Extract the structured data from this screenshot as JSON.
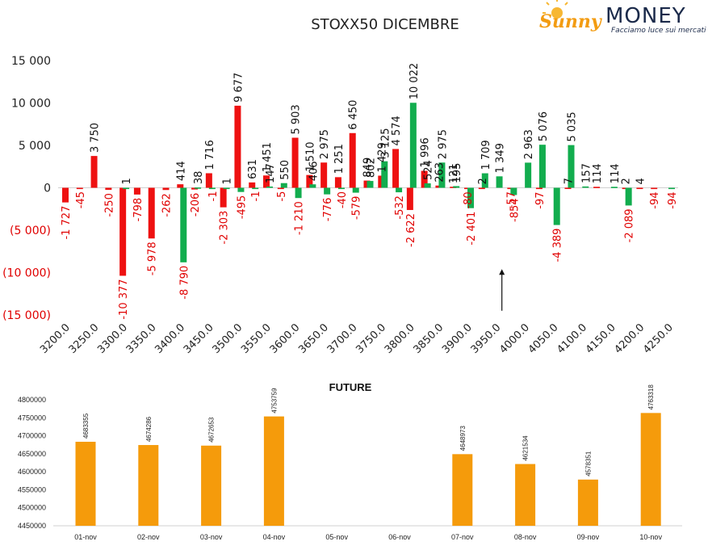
{
  "logo": {
    "brand_part1": "Sunny",
    "brand_part2": "MONEY",
    "tagline": "Facciamo luce sui mercati",
    "colors": {
      "sun": "#f39c12",
      "text": "#1b2a4a"
    }
  },
  "colors": {
    "red": "#ee1111",
    "green": "#12ad4e",
    "orange": "#f59b0b",
    "negative_tick": "#e00000",
    "positive_tick": "#222222"
  },
  "chart_data": [
    {
      "type": "bar",
      "title": "STOXX50 DICEMBRE",
      "ylim": [
        -15000,
        15000
      ],
      "y_ticks": [
        {
          "value": 15000,
          "label": "15 000"
        },
        {
          "value": 10000,
          "label": "10 000"
        },
        {
          "value": 5000,
          "label": "5 000"
        },
        {
          "value": 0,
          "label": "0"
        },
        {
          "value": -5000,
          "label": "(5 000)"
        },
        {
          "value": -10000,
          "label": "(10 000)"
        },
        {
          "value": -15000,
          "label": "(15 000)"
        }
      ],
      "categories": [
        "3200.0",
        "3250.0",
        "3300.0",
        "3350.0",
        "3400.0",
        "3450.0",
        "3500.0",
        "3550.0",
        "3600.0",
        "3650.0",
        "3700.0",
        "3750.0",
        "3800.0",
        "3850.0",
        "3900.0",
        "3950.0",
        "4000.0",
        "4050.0",
        "4100.0",
        "4150.0",
        "4200.0",
        "4250.0"
      ],
      "series": [
        {
          "color": "red",
          "points": [
            {
              "x": 3200,
              "value": -1727,
              "label": "-1 727"
            },
            {
              "x": 3225,
              "value": -45,
              "label": "-45"
            },
            {
              "x": 3250,
              "value": 3750,
              "label": "3 750"
            },
            {
              "x": 3275,
              "value": -250,
              "label": "-250"
            },
            {
              "x": 3300,
              "value": -10377,
              "label": "-10 377"
            },
            {
              "x": 3325,
              "value": -798,
              "label": "-798"
            },
            {
              "x": 3350,
              "value": -5978,
              "label": "-5 978"
            },
            {
              "x": 3375,
              "value": -262,
              "label": "-262"
            },
            {
              "x": 3400,
              "value": 414,
              "label": "414"
            },
            {
              "x": 3425,
              "value": -206,
              "label": "-206"
            },
            {
              "x": 3450,
              "value": 1716,
              "label": "1 716"
            },
            {
              "x": 3475,
              "value": -2303,
              "label": "-2 303"
            },
            {
              "x": 3500,
              "value": 9677,
              "label": "9 677"
            },
            {
              "x": 3525,
              "value": 631,
              "label": "631"
            },
            {
              "x": 3550,
              "value": 1451,
              "label": "1 451"
            },
            {
              "x": 3575,
              "value": -5,
              "label": "-5"
            },
            {
              "x": 3600,
              "value": 5903,
              "label": "5 903"
            },
            {
              "x": 3625,
              "value": 1510,
              "label": "1 510"
            },
            {
              "x": 3650,
              "value": 2975,
              "label": "2 975"
            },
            {
              "x": 3675,
              "value": 1251,
              "label": "1 251"
            },
            {
              "x": 3700,
              "value": 6450,
              "label": "6 450"
            },
            {
              "x": 3725,
              "value": 849,
              "label": "849"
            },
            {
              "x": 3750,
              "value": 1429,
              "label": "1 429"
            },
            {
              "x": 3775,
              "value": 4574,
              "label": "4 574"
            },
            {
              "x": 3800,
              "value": -2622,
              "label": "-2 622"
            },
            {
              "x": 3825,
              "value": 1996,
              "label": "1 996"
            },
            {
              "x": 3850,
              "value": 263,
              "label": "263"
            },
            {
              "x": 3875,
              "value": 121,
              "label": "121"
            },
            {
              "x": 3900,
              "value": -80,
              "label": "-80"
            },
            {
              "x": 3925,
              "value": 2,
              "label": "2"
            },
            {
              "x": 3975,
              "value": -57,
              "label": "-57"
            },
            {
              "x": 4025,
              "value": -97,
              "label": "-97"
            },
            {
              "x": 4075,
              "value": 7,
              "label": "7"
            },
            {
              "x": 4125,
              "value": 114,
              "label": "114"
            },
            {
              "x": 4175,
              "value": 2,
              "label": "2"
            },
            {
              "x": 4200,
              "value": 4,
              "label": "4"
            },
            {
              "x": 4225,
              "value": -94,
              "label": "-94"
            }
          ]
        },
        {
          "color": "green",
          "points": [
            {
              "x": 3300,
              "value": 1,
              "label": "1"
            },
            {
              "x": 3400,
              "value": -8790,
              "label": "-8 790"
            },
            {
              "x": 3425,
              "value": 38,
              "label": "38"
            },
            {
              "x": 3450,
              "value": -1,
              "label": "-1"
            },
            {
              "x": 3475,
              "value": 1,
              "label": "1"
            },
            {
              "x": 3500,
              "value": -495,
              "label": "-495"
            },
            {
              "x": 3525,
              "value": -1,
              "label": "-1"
            },
            {
              "x": 3550,
              "value": 147,
              "label": "147"
            },
            {
              "x": 3575,
              "value": 550,
              "label": "550"
            },
            {
              "x": 3600,
              "value": -1210,
              "label": "-1 210"
            },
            {
              "x": 3625,
              "value": 406,
              "label": "406"
            },
            {
              "x": 3650,
              "value": -776,
              "label": "-776"
            },
            {
              "x": 3675,
              "value": -40,
              "label": "-40"
            },
            {
              "x": 3700,
              "value": -579,
              "label": "-579"
            },
            {
              "x": 3725,
              "value": 802,
              "label": "802"
            },
            {
              "x": 3750,
              "value": 3125,
              "label": "3 125"
            },
            {
              "x": 3775,
              "value": -532,
              "label": "-532"
            },
            {
              "x": 3800,
              "value": 10022,
              "label": "10 022"
            },
            {
              "x": 3825,
              "value": 524,
              "label": "524"
            },
            {
              "x": 3850,
              "value": 2975,
              "label": "2 975"
            },
            {
              "x": 3875,
              "value": 195,
              "label": "195"
            },
            {
              "x": 3900,
              "value": -2401,
              "label": "-2 401"
            },
            {
              "x": 3925,
              "value": 1709,
              "label": "1 709"
            },
            {
              "x": 3950,
              "value": 1349,
              "label": "1 349"
            },
            {
              "x": 3975,
              "value": -854,
              "label": "-854"
            },
            {
              "x": 4000,
              "value": 2963,
              "label": "2 963"
            },
            {
              "x": 4025,
              "value": 5076,
              "label": "5 076"
            },
            {
              "x": 4050,
              "value": -4389,
              "label": "-4 389"
            },
            {
              "x": 4075,
              "value": 5035,
              "label": "5 035"
            },
            {
              "x": 4100,
              "value": 157,
              "label": "157"
            },
            {
              "x": 4150,
              "value": 114,
              "label": "114"
            },
            {
              "x": 4175,
              "value": -2089,
              "label": "-2 089"
            },
            {
              "x": 4250,
              "value": -94,
              "label": "-94"
            }
          ]
        }
      ],
      "annotation": {
        "type": "arrow",
        "x": 3960,
        "from_value": -14500,
        "to_value": -9600
      }
    },
    {
      "type": "bar",
      "title": "FUTURE",
      "ylim": [
        4450000,
        4800000
      ],
      "y_ticks": [
        "4800000",
        "4750000",
        "4700000",
        "4650000",
        "4600000",
        "4550000",
        "4500000",
        "4450000"
      ],
      "categories": [
        "01-nov",
        "02-nov",
        "03-nov",
        "04-nov",
        "05-nov",
        "06-nov",
        "07-nov",
        "08-nov",
        "09-nov",
        "10-nov"
      ],
      "values": [
        4683355,
        4674286,
        4672653,
        4753759,
        null,
        null,
        4648973,
        4621534,
        4578351,
        4763318
      ],
      "data_labels": [
        "4683355",
        "4674286",
        "4672653",
        "4753759",
        "",
        "",
        "4648973",
        "4621534",
        "4578351",
        "4763318"
      ]
    }
  ]
}
